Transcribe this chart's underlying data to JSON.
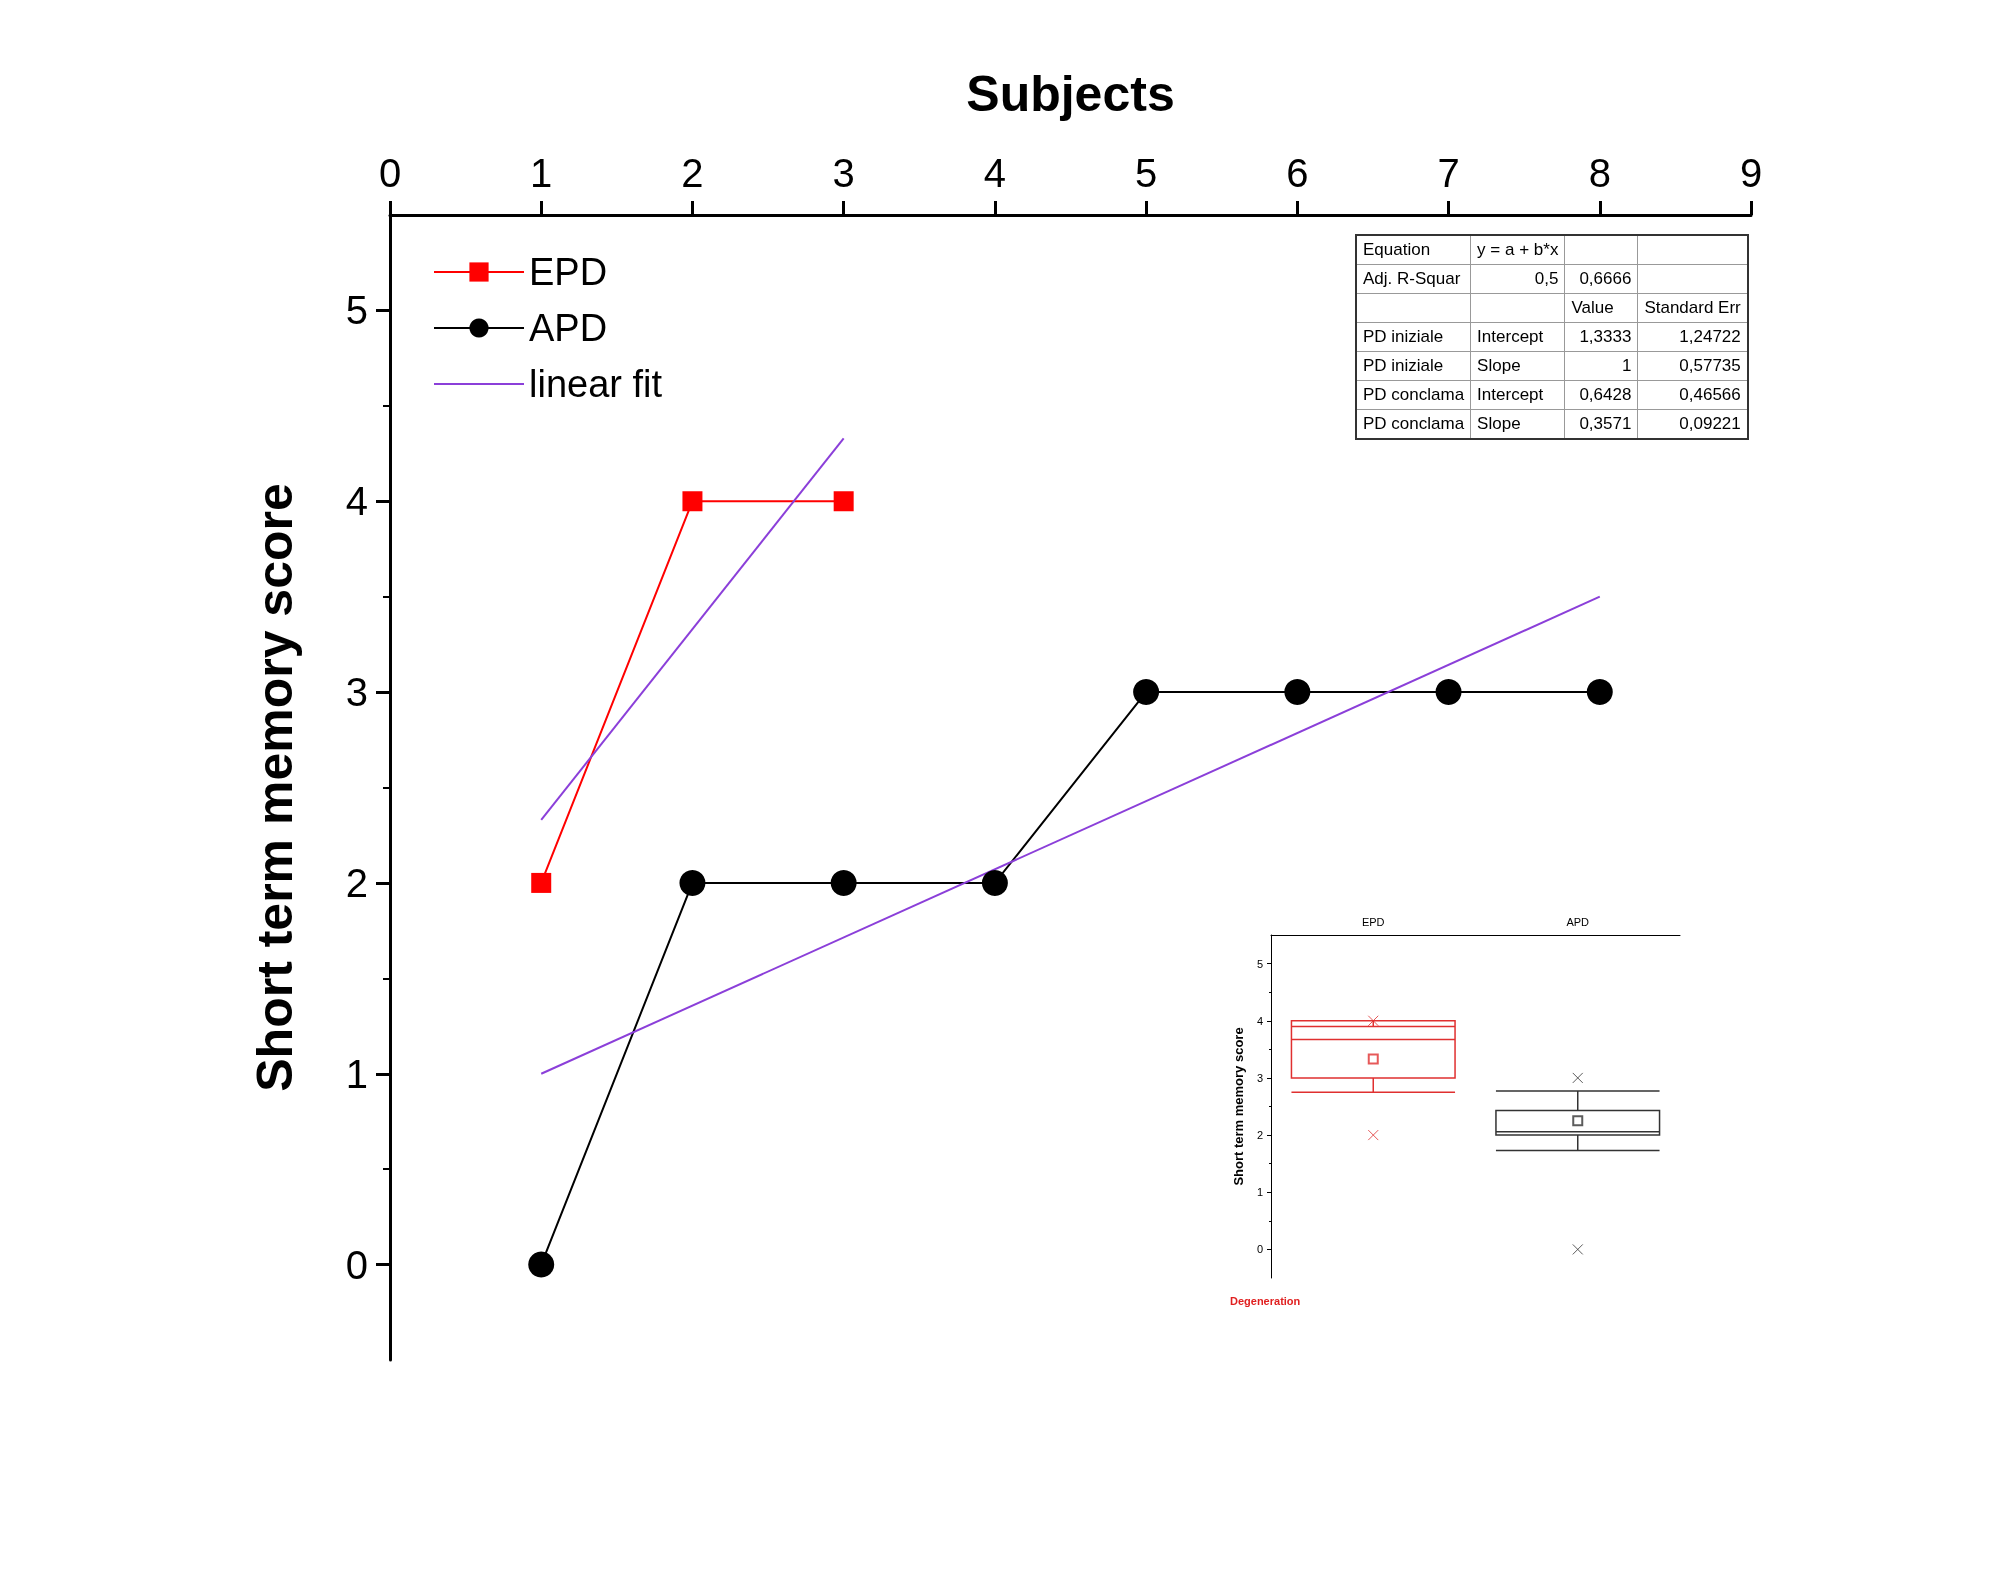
{
  "chart_data": [
    {
      "type": "line",
      "xlabel": "Subjects",
      "ylabel": "Short term memory score",
      "xlim": [
        0,
        9
      ],
      "xticks": [
        0,
        1,
        2,
        3,
        4,
        5,
        6,
        7,
        8,
        9
      ],
      "ylim": [
        -0.5,
        5.5
      ],
      "yticks": [
        0,
        1,
        2,
        3,
        4,
        5
      ],
      "grid": false,
      "legend": "top left",
      "annotations": [
        "Equation",
        "y = a + b*x",
        "Adj. R-Squar",
        "0,5",
        "0,6666",
        "Value",
        "Standard Err",
        "PD iniziale",
        "Intercept",
        "1,3333",
        "1,24722",
        "PD iniziale",
        "Slope",
        "1",
        "0,57735",
        "PD conclama",
        "Intercept",
        "0,6428",
        "0,46566",
        "PD conclama",
        "Slope",
        "0,3571",
        "0,09221"
      ],
      "series": [
        {
          "name": "EPD",
          "color": "#ff0000",
          "marker": "square",
          "x": [
            1,
            2,
            3
          ],
          "values": [
            2,
            4,
            4
          ]
        },
        {
          "name": "APD",
          "color": "#000000",
          "marker": "circle",
          "x": [
            1,
            2,
            3,
            4,
            5,
            6,
            7,
            8
          ],
          "values": [
            0,
            2,
            2,
            2,
            3,
            3,
            3,
            3
          ]
        },
        {
          "name": "linear fit",
          "color": "#8b3fd9",
          "marker": "none",
          "x": [
            1,
            3
          ],
          "values": [
            2.33,
            4.33
          ]
        },
        {
          "color": "#8b3fd9",
          "marker": "none",
          "x": [
            1,
            8
          ],
          "values": [
            1,
            3.5
          ]
        }
      ]
    },
    {
      "type": "box",
      "categories": [
        "EPD",
        "APD"
      ],
      "ylabel": "Short term memory score",
      "ylim": [
        -0.5,
        5.5
      ],
      "yticks": [
        0,
        1,
        2,
        3,
        4,
        5
      ],
      "colors": [
        "#e03030",
        "#333333"
      ],
      "annotations": [
        "Degeneration"
      ],
      "boxes": [
        {
          "low": 2.75,
          "q1": 3,
          "median": 3.67,
          "q3": 4,
          "high": 3.9,
          "mean": 3.33,
          "outliers": [
            4,
            2
          ]
        },
        {
          "low": 1.73,
          "q1": 2,
          "median": 2.06,
          "q3": 2.43,
          "high": 2.77,
          "mean": 2.25,
          "outliers": [
            3,
            0
          ]
        }
      ]
    }
  ]
}
